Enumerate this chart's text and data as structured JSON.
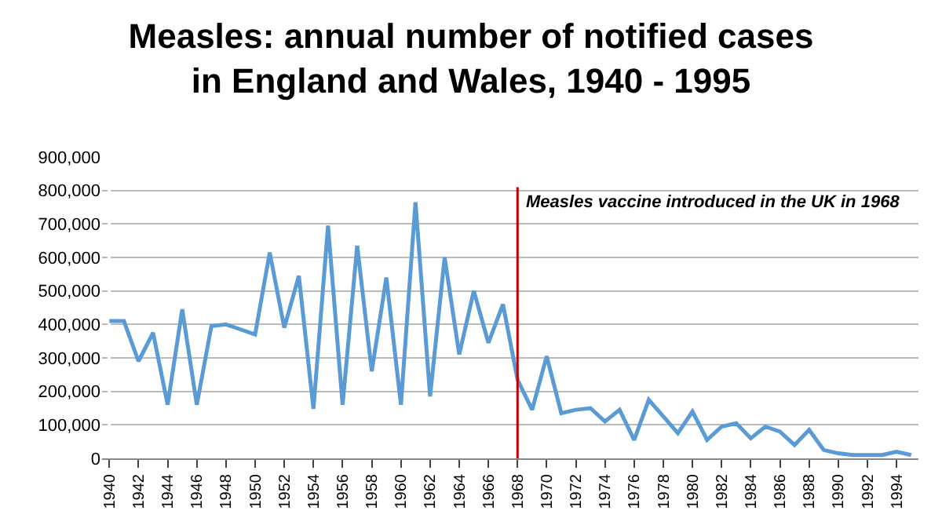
{
  "chart_data": {
    "type": "line",
    "title": "Measles: annual number of notified cases\nin England and Wales, 1940 - 1995",
    "categories": [
      "1940",
      null,
      "1942",
      null,
      "1944",
      null,
      "1946",
      null,
      "1948",
      null,
      "1950",
      null,
      "1952",
      null,
      "1954",
      null,
      "1956",
      null,
      "1958",
      null,
      "1960",
      null,
      "1962",
      null,
      "1964",
      null,
      "1966",
      null,
      "1968",
      null,
      "1970",
      null,
      "1972",
      null,
      "1974",
      null,
      "1976",
      null,
      "1978",
      null,
      "1980",
      null,
      "1982",
      null,
      "1984",
      null,
      "1986",
      null,
      "1988",
      null,
      "1990",
      null,
      "1992",
      null,
      "1994",
      null
    ],
    "series": [
      {
        "color": "#5b9bd5",
        "values": [
          410000,
          410000,
          290000,
          375000,
          160000,
          445000,
          160000,
          395000,
          400000,
          385000,
          370000,
          615000,
          390000,
          545000,
          148000,
          695000,
          160000,
          635000,
          260000,
          540000,
          160000,
          765000,
          185000,
          600000,
          310000,
          500000,
          345000,
          460000,
          235000,
          145000,
          305000,
          135000,
          145000,
          150000,
          110000,
          145000,
          55000,
          175000,
          125000,
          75000,
          140000,
          55000,
          95000,
          105000,
          60000,
          95000,
          80000,
          40000,
          85000,
          25000,
          15000,
          10000,
          10000,
          10000,
          20000,
          10000
        ]
      }
    ],
    "ylim": [
      0,
      900000
    ],
    "yticks": [
      {
        "value": 0,
        "label": "0"
      },
      {
        "value": 100000,
        "label": "100,000"
      },
      {
        "value": 200000,
        "label": "200,000"
      },
      {
        "value": 300000,
        "label": "300,000"
      },
      {
        "value": 400000,
        "label": "400,000"
      },
      {
        "value": 500000,
        "label": "500,000"
      },
      {
        "value": 600000,
        "label": "600,000"
      },
      {
        "value": 700000,
        "label": "700,000"
      },
      {
        "value": 800000,
        "label": "800,000"
      },
      {
        "value": 900000,
        "label": "900,000"
      }
    ],
    "ref_lines": [
      {
        "axis": "x",
        "value": "1968",
        "label": "Measles vaccine introduced in the UK in 1968",
        "color": "#c00000"
      }
    ],
    "grid": "y",
    "marker": "none",
    "line_style": "solid"
  }
}
